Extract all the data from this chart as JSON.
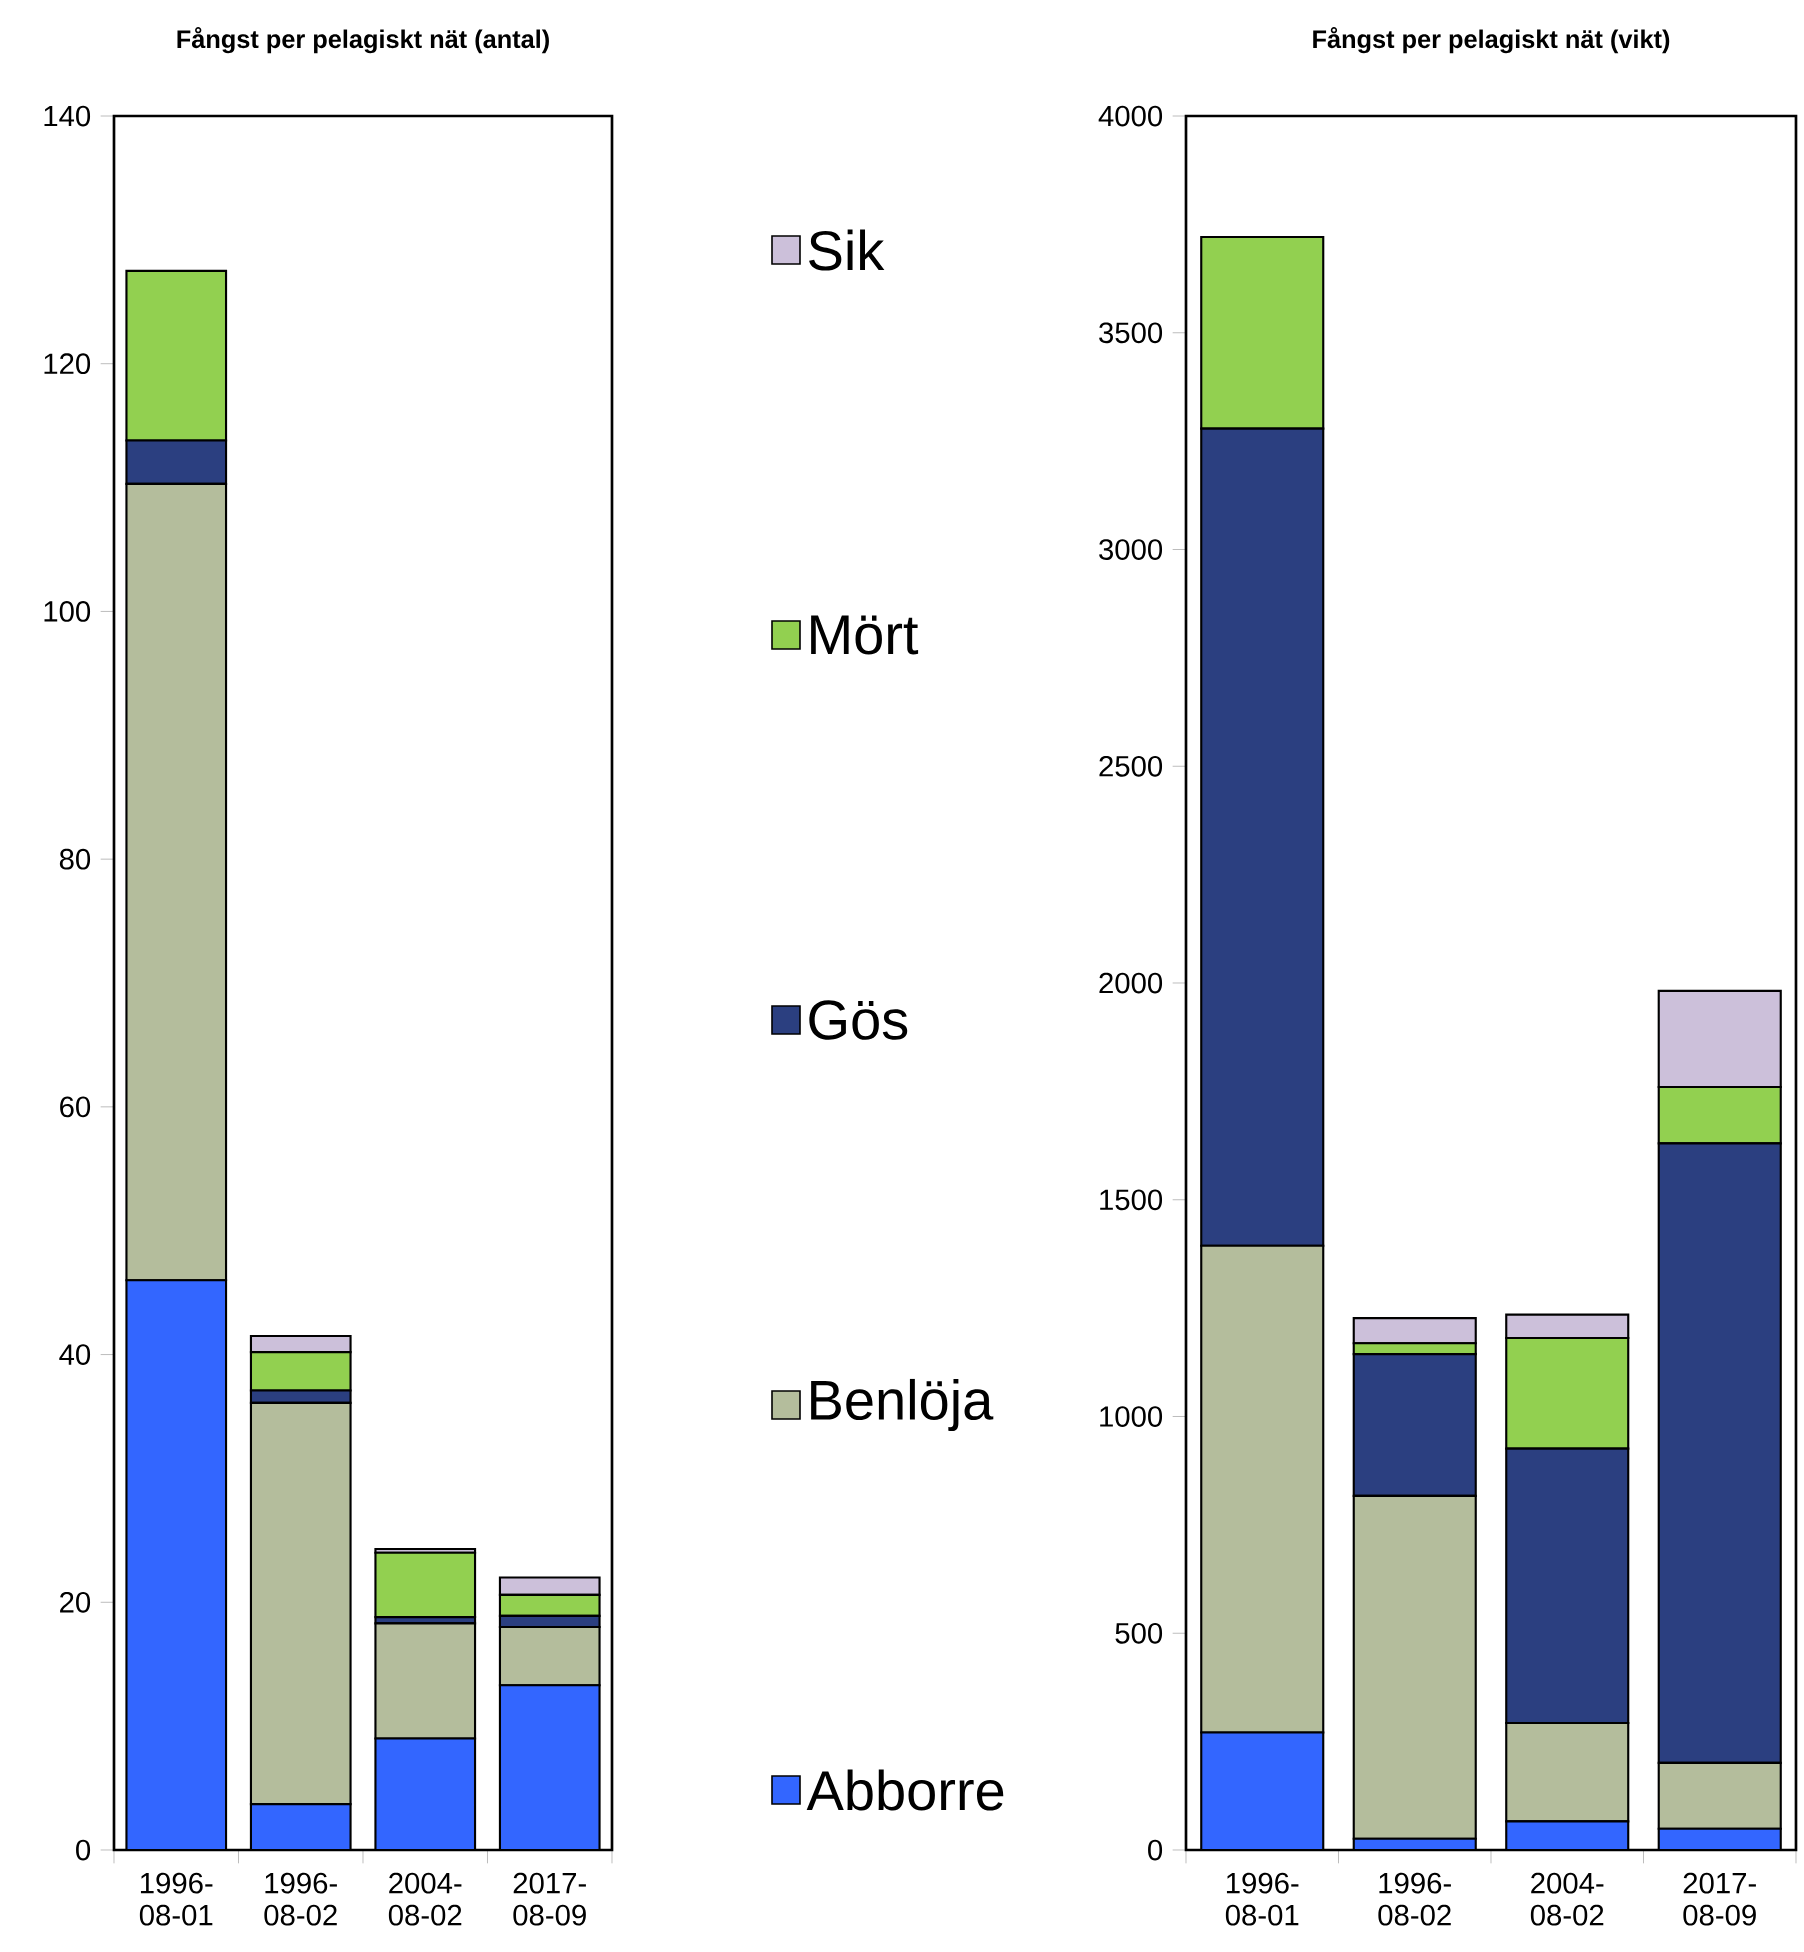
{
  "chart_data": [
    {
      "type": "bar",
      "stacked": true,
      "title": "Fångst per pelagiskt nät (antal)",
      "categories": [
        "1996-08-01",
        "1996-08-02",
        "2004-08-02",
        "2017-08-09"
      ],
      "legend": "right",
      "series": [
        {
          "name": "Abborre",
          "color": "#3366ff",
          "values": [
            46,
            3.7,
            9.0,
            13.3
          ]
        },
        {
          "name": "Benlöja",
          "color": "#b4bd9c",
          "values": [
            64.3,
            32.4,
            9.3,
            4.7
          ]
        },
        {
          "name": "Gös",
          "color": "#2b3f80",
          "values": [
            3.5,
            1.0,
            0.5,
            0.9
          ]
        },
        {
          "name": "Mört",
          "color": "#92d050",
          "values": [
            13.7,
            3.1,
            5.2,
            1.7
          ]
        },
        {
          "name": "Sik",
          "color": "#ccc0da",
          "values": [
            null,
            1.3,
            0.3,
            1.4
          ]
        }
      ],
      "ylim": [
        0,
        140
      ],
      "yticks": [
        0,
        20,
        40,
        60,
        80,
        100,
        120,
        140
      ]
    },
    {
      "type": "bar",
      "stacked": true,
      "title": "Fångst per pelagiskt nät (vikt)",
      "categories": [
        "1996-08-01",
        "1996-08-02",
        "2004-08-02",
        "2017-08-09"
      ],
      "series": [
        {
          "color": "#3366ff",
          "values": [
            271,
            26,
            66,
            49
          ]
        },
        {
          "color": "#b4bd9c",
          "values": [
            1123,
            791,
            227,
            152
          ]
        },
        {
          "color": "#2b3f80",
          "values": [
            1885,
            327,
            633,
            1429
          ]
        },
        {
          "color": "#92d050",
          "values": [
            442,
            25,
            255,
            130
          ]
        },
        {
          "color": "#ccc0da",
          "values": [
            null,
            58,
            54,
            222
          ]
        }
      ],
      "ylim": [
        0,
        4000
      ],
      "yticks": [
        0,
        500,
        1000,
        1500,
        2000,
        2500,
        3000,
        3500,
        4000
      ]
    }
  ]
}
